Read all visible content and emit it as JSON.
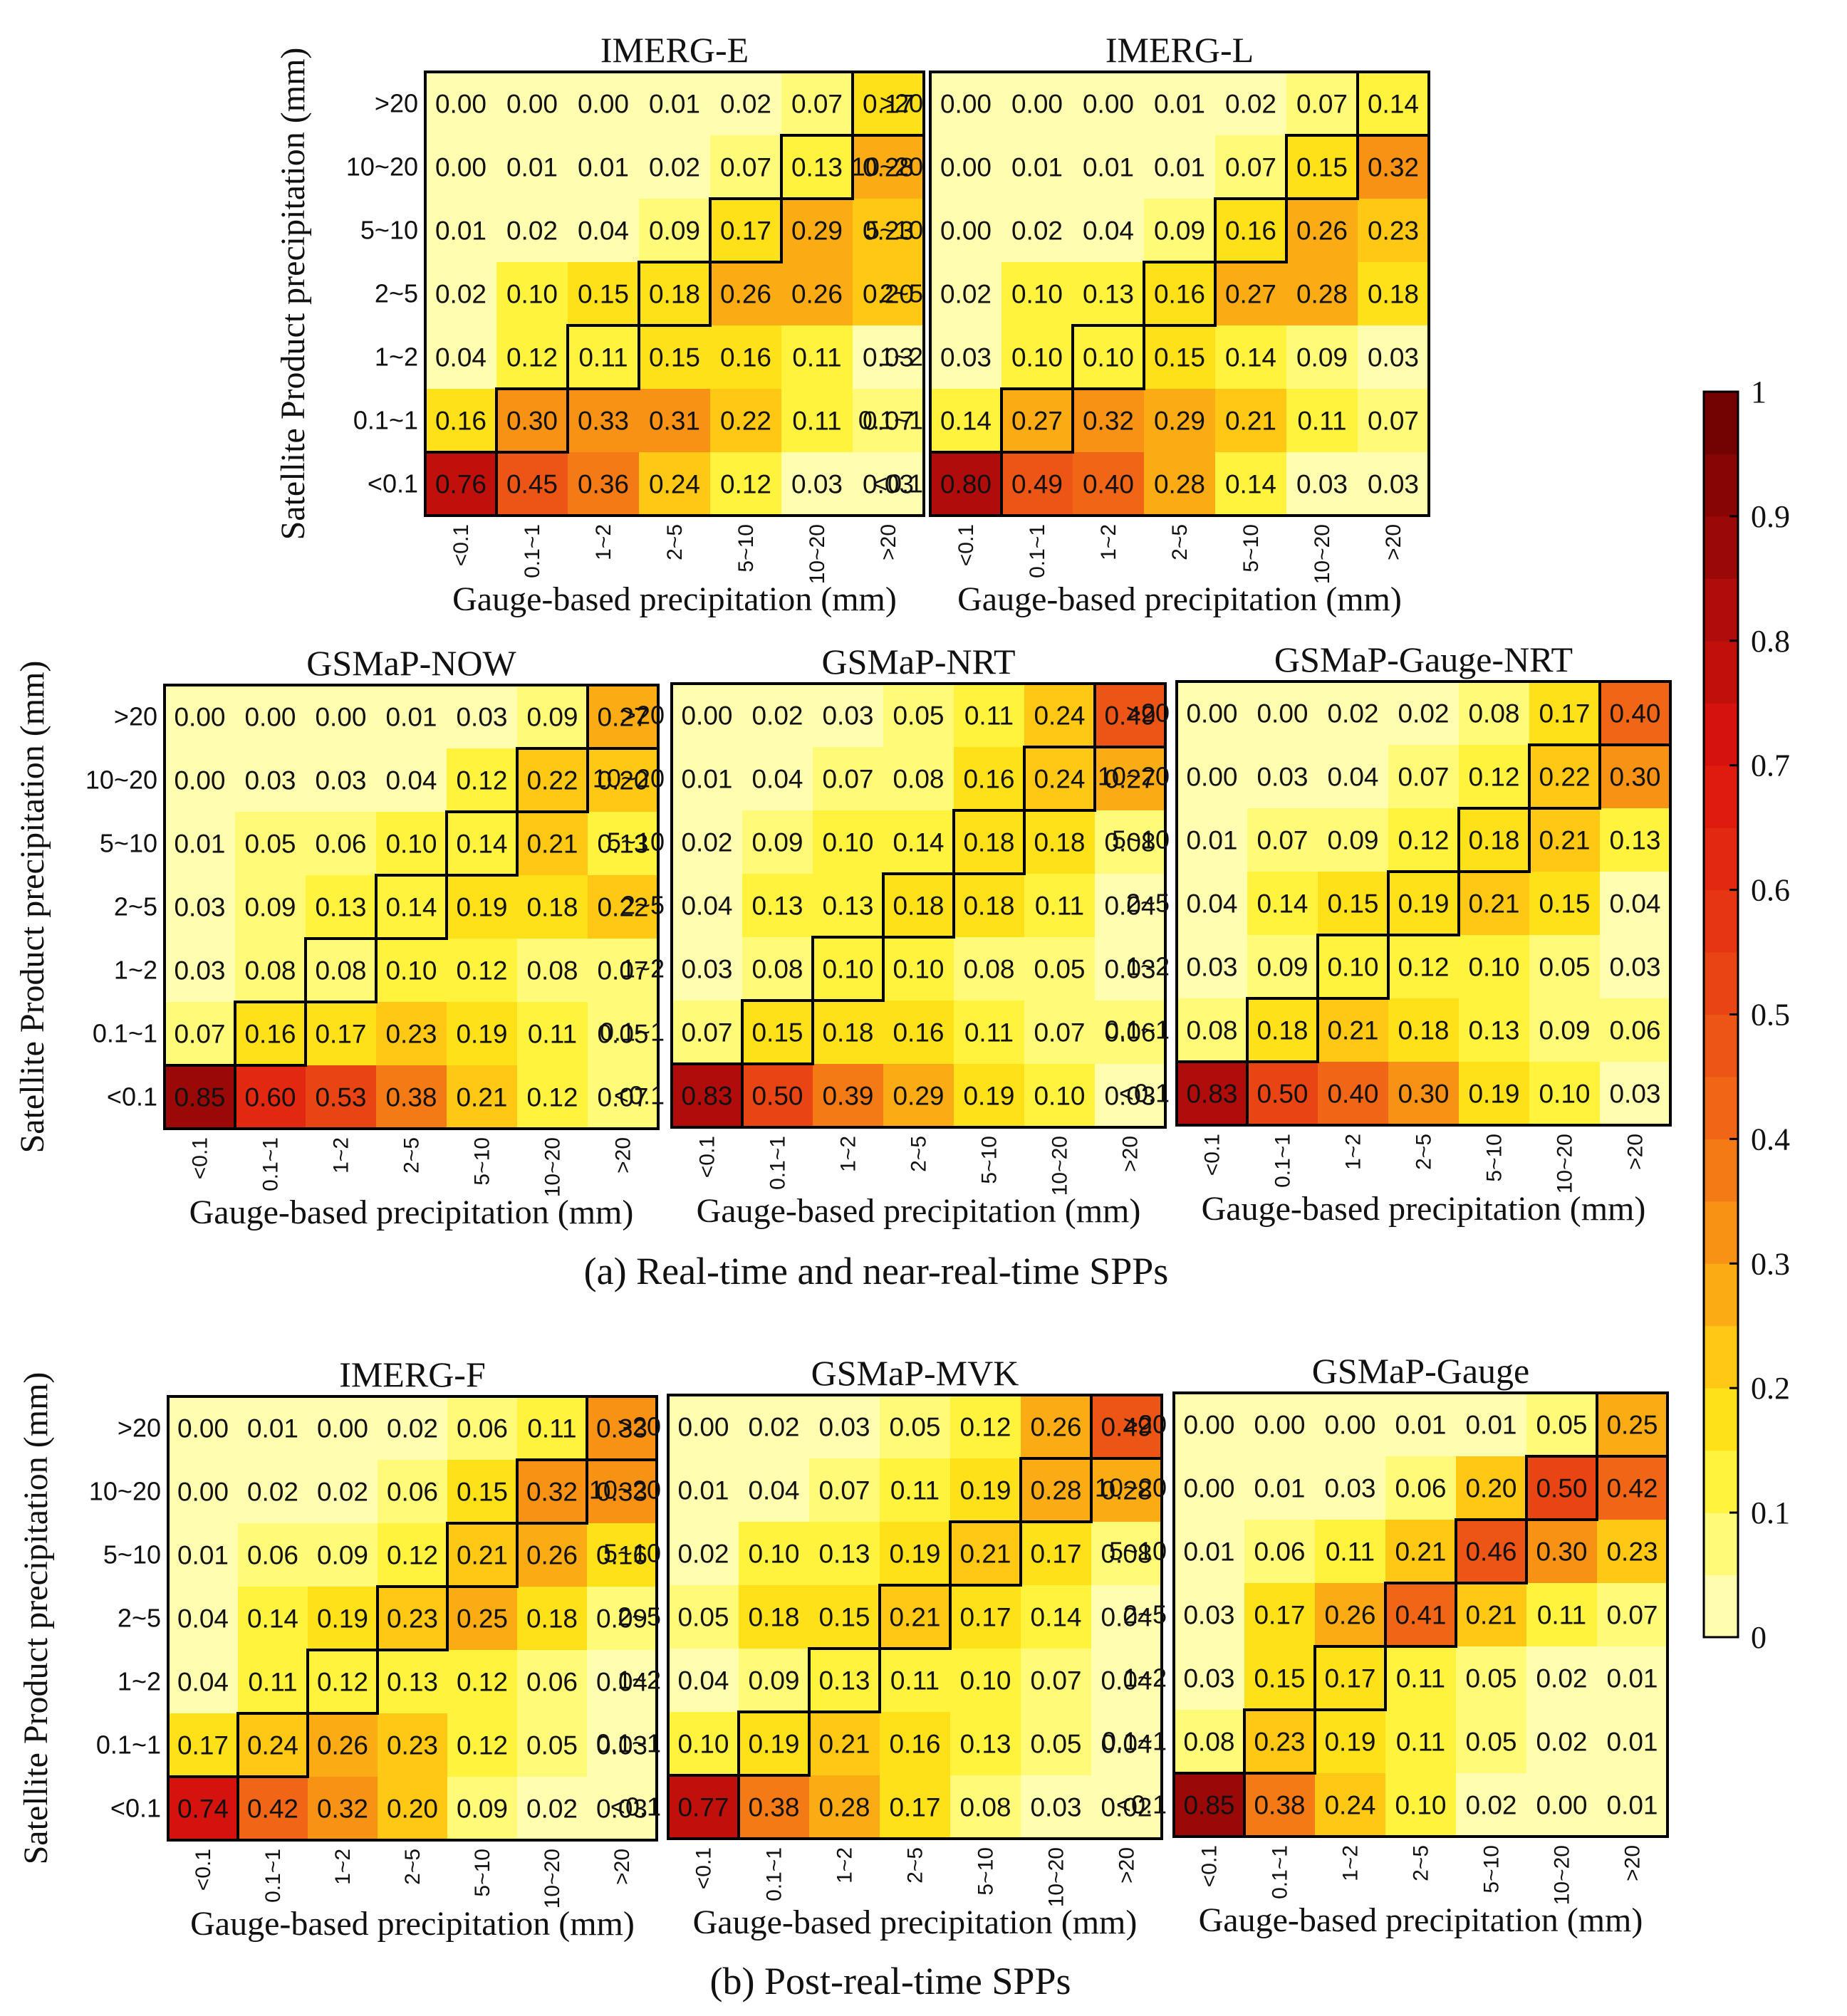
{
  "figure": {
    "captions": [
      "(a) Real-time and near-real-time SPPs",
      "(b) Post-real-time SPPs"
    ],
    "colorbar": {
      "ticks": [
        "0",
        "0.1",
        "0.2",
        "0.3",
        "0.4",
        "0.5",
        "0.6",
        "0.7",
        "0.8",
        "0.9",
        "1"
      ]
    }
  },
  "chart_data": [
    {
      "type": "heatmap",
      "title": "IMERG-E",
      "xlabel": "Gauge-based precipitation (mm)",
      "ylabel": "Satellite Product precipitation (mm)",
      "x_categories": [
        "<0.1",
        "0.1~1",
        "1~2",
        "2~5",
        "5~10",
        "10~20",
        ">20"
      ],
      "y_categories_top_to_bottom": [
        ">20",
        "10~20",
        "5~10",
        "2~5",
        "1~2",
        "0.1~1",
        "<0.1"
      ],
      "values": [
        [
          0.0,
          0.0,
          0.0,
          0.01,
          0.02,
          0.07,
          0.17
        ],
        [
          0.0,
          0.01,
          0.01,
          0.02,
          0.07,
          0.13,
          0.28
        ],
        [
          0.01,
          0.02,
          0.04,
          0.09,
          0.17,
          0.29,
          0.23
        ],
        [
          0.02,
          0.1,
          0.15,
          0.18,
          0.26,
          0.26,
          0.2
        ],
        [
          0.04,
          0.12,
          0.11,
          0.15,
          0.16,
          0.11,
          0.03
        ],
        [
          0.16,
          0.3,
          0.33,
          0.31,
          0.22,
          0.11,
          0.07
        ],
        [
          0.76,
          0.45,
          0.36,
          0.24,
          0.12,
          0.03,
          0.03
        ]
      ],
      "color_range": [
        0,
        1
      ]
    },
    {
      "type": "heatmap",
      "title": "IMERG-L",
      "xlabel": "Gauge-based precipitation (mm)",
      "x_categories": [
        "<0.1",
        "0.1~1",
        "1~2",
        "2~5",
        "5~10",
        "10~20",
        ">20"
      ],
      "y_categories_top_to_bottom": [
        ">20",
        "10~20",
        "5~10",
        "2~5",
        "1~2",
        "0.1~1",
        "<0.1"
      ],
      "values": [
        [
          0.0,
          0.0,
          0.0,
          0.01,
          0.02,
          0.07,
          0.14
        ],
        [
          0.0,
          0.01,
          0.01,
          0.01,
          0.07,
          0.15,
          0.32
        ],
        [
          0.0,
          0.02,
          0.04,
          0.09,
          0.16,
          0.26,
          0.23
        ],
        [
          0.02,
          0.1,
          0.13,
          0.16,
          0.27,
          0.28,
          0.18
        ],
        [
          0.03,
          0.1,
          0.1,
          0.15,
          0.14,
          0.09,
          0.03
        ],
        [
          0.14,
          0.27,
          0.32,
          0.29,
          0.21,
          0.11,
          0.07
        ],
        [
          0.8,
          0.49,
          0.4,
          0.28,
          0.14,
          0.03,
          0.03
        ]
      ],
      "color_range": [
        0,
        1
      ]
    },
    {
      "type": "heatmap",
      "title": "GSMaP-NOW",
      "xlabel": "Gauge-based precipitation (mm)",
      "ylabel": "Satellite Product precipitation (mm)",
      "x_categories": [
        "<0.1",
        "0.1~1",
        "1~2",
        "2~5",
        "5~10",
        "10~20",
        ">20"
      ],
      "y_categories_top_to_bottom": [
        ">20",
        "10~20",
        "5~10",
        "2~5",
        "1~2",
        "0.1~1",
        "<0.1"
      ],
      "values": [
        [
          0.0,
          0.0,
          0.0,
          0.01,
          0.03,
          0.09,
          0.27
        ],
        [
          0.0,
          0.03,
          0.03,
          0.04,
          0.12,
          0.22,
          0.2
        ],
        [
          0.01,
          0.05,
          0.06,
          0.1,
          0.14,
          0.21,
          0.13
        ],
        [
          0.03,
          0.09,
          0.13,
          0.14,
          0.19,
          0.18,
          0.22
        ],
        [
          0.03,
          0.08,
          0.08,
          0.1,
          0.12,
          0.08,
          0.07
        ],
        [
          0.07,
          0.16,
          0.17,
          0.23,
          0.19,
          0.11,
          0.05
        ],
        [
          0.85,
          0.6,
          0.53,
          0.38,
          0.21,
          0.12,
          0.07
        ]
      ],
      "color_range": [
        0,
        1
      ]
    },
    {
      "type": "heatmap",
      "title": "GSMaP-NRT",
      "xlabel": "Gauge-based precipitation (mm)",
      "x_categories": [
        "<0.1",
        "0.1~1",
        "1~2",
        "2~5",
        "5~10",
        "10~20",
        ">20"
      ],
      "y_categories_top_to_bottom": [
        ">20",
        "10~20",
        "5~10",
        "2~5",
        "1~2",
        "0.1~1",
        "<0.1"
      ],
      "values": [
        [
          0.0,
          0.02,
          0.03,
          0.05,
          0.11,
          0.24,
          0.49
        ],
        [
          0.01,
          0.04,
          0.07,
          0.08,
          0.16,
          0.24,
          0.27
        ],
        [
          0.02,
          0.09,
          0.1,
          0.14,
          0.18,
          0.18,
          0.08
        ],
        [
          0.04,
          0.13,
          0.13,
          0.18,
          0.18,
          0.11,
          0.04
        ],
        [
          0.03,
          0.08,
          0.1,
          0.1,
          0.08,
          0.05,
          0.03
        ],
        [
          0.07,
          0.15,
          0.18,
          0.16,
          0.11,
          0.07,
          0.06
        ],
        [
          0.83,
          0.5,
          0.39,
          0.29,
          0.19,
          0.1,
          0.03
        ]
      ],
      "color_range": [
        0,
        1
      ]
    },
    {
      "type": "heatmap",
      "title": "GSMaP-Gauge-NRT",
      "xlabel": "Gauge-based precipitation (mm)",
      "x_categories": [
        "<0.1",
        "0.1~1",
        "1~2",
        "2~5",
        "5~10",
        "10~20",
        ">20"
      ],
      "y_categories_top_to_bottom": [
        ">20",
        "10~20",
        "5~10",
        "2~5",
        "1~2",
        "0.1~1",
        "<0.1"
      ],
      "values": [
        [
          0.0,
          0.0,
          0.02,
          0.02,
          0.08,
          0.17,
          0.4
        ],
        [
          0.0,
          0.03,
          0.04,
          0.07,
          0.12,
          0.22,
          0.3
        ],
        [
          0.01,
          0.07,
          0.09,
          0.12,
          0.18,
          0.21,
          0.13
        ],
        [
          0.04,
          0.14,
          0.15,
          0.19,
          0.21,
          0.15,
          0.04
        ],
        [
          0.03,
          0.09,
          0.1,
          0.12,
          0.1,
          0.05,
          0.03
        ],
        [
          0.08,
          0.18,
          0.21,
          0.18,
          0.13,
          0.09,
          0.06
        ],
        [
          0.83,
          0.5,
          0.4,
          0.3,
          0.19,
          0.1,
          0.03
        ]
      ],
      "color_range": [
        0,
        1
      ]
    },
    {
      "type": "heatmap",
      "title": "IMERG-F",
      "xlabel": "Gauge-based precipitation (mm)",
      "ylabel": "Satellite Product precipitation (mm)",
      "x_categories": [
        "<0.1",
        "0.1~1",
        "1~2",
        "2~5",
        "5~10",
        "10~20",
        ">20"
      ],
      "y_categories_top_to_bottom": [
        ">20",
        "10~20",
        "5~10",
        "2~5",
        "1~2",
        "0.1~1",
        "<0.1"
      ],
      "values": [
        [
          0.0,
          0.01,
          0.0,
          0.02,
          0.06,
          0.11,
          0.33
        ],
        [
          0.0,
          0.02,
          0.02,
          0.06,
          0.15,
          0.32,
          0.33
        ],
        [
          0.01,
          0.06,
          0.09,
          0.12,
          0.21,
          0.26,
          0.16
        ],
        [
          0.04,
          0.14,
          0.19,
          0.23,
          0.25,
          0.18,
          0.09
        ],
        [
          0.04,
          0.11,
          0.12,
          0.13,
          0.12,
          0.06,
          0.04
        ],
        [
          0.17,
          0.24,
          0.26,
          0.23,
          0.12,
          0.05,
          0.03
        ],
        [
          0.74,
          0.42,
          0.32,
          0.2,
          0.09,
          0.02,
          0.03
        ]
      ],
      "color_range": [
        0,
        1
      ]
    },
    {
      "type": "heatmap",
      "title": "GSMaP-MVK",
      "xlabel": "Gauge-based precipitation (mm)",
      "x_categories": [
        "<0.1",
        "0.1~1",
        "1~2",
        "2~5",
        "5~10",
        "10~20",
        ">20"
      ],
      "y_categories_top_to_bottom": [
        ">20",
        "10~20",
        "5~10",
        "2~5",
        "1~2",
        "0.1~1",
        "<0.1"
      ],
      "values": [
        [
          0.0,
          0.02,
          0.03,
          0.05,
          0.12,
          0.26,
          0.49
        ],
        [
          0.01,
          0.04,
          0.07,
          0.11,
          0.19,
          0.28,
          0.28
        ],
        [
          0.02,
          0.1,
          0.13,
          0.19,
          0.21,
          0.17,
          0.08
        ],
        [
          0.05,
          0.18,
          0.15,
          0.21,
          0.17,
          0.14,
          0.04
        ],
        [
          0.04,
          0.09,
          0.13,
          0.11,
          0.1,
          0.07,
          0.04
        ],
        [
          0.1,
          0.19,
          0.21,
          0.16,
          0.13,
          0.05,
          0.04
        ],
        [
          0.77,
          0.38,
          0.28,
          0.17,
          0.08,
          0.03,
          0.02
        ]
      ],
      "color_range": [
        0,
        1
      ]
    },
    {
      "type": "heatmap",
      "title": "GSMaP-Gauge",
      "xlabel": "Gauge-based precipitation (mm)",
      "x_categories": [
        "<0.1",
        "0.1~1",
        "1~2",
        "2~5",
        "5~10",
        "10~20",
        ">20"
      ],
      "y_categories_top_to_bottom": [
        ">20",
        "10~20",
        "5~10",
        "2~5",
        "1~2",
        "0.1~1",
        "<0.1"
      ],
      "values": [
        [
          0.0,
          0.0,
          0.0,
          0.01,
          0.01,
          0.05,
          0.25
        ],
        [
          0.0,
          0.01,
          0.03,
          0.06,
          0.2,
          0.5,
          0.42
        ],
        [
          0.01,
          0.06,
          0.11,
          0.21,
          0.46,
          0.3,
          0.23
        ],
        [
          0.03,
          0.17,
          0.26,
          0.41,
          0.21,
          0.11,
          0.07
        ],
        [
          0.03,
          0.15,
          0.17,
          0.11,
          0.05,
          0.02,
          0.01
        ],
        [
          0.08,
          0.23,
          0.19,
          0.11,
          0.05,
          0.02,
          0.01
        ],
        [
          0.85,
          0.38,
          0.24,
          0.1,
          0.02,
          0.0,
          0.01
        ]
      ],
      "color_range": [
        0,
        1
      ]
    }
  ]
}
